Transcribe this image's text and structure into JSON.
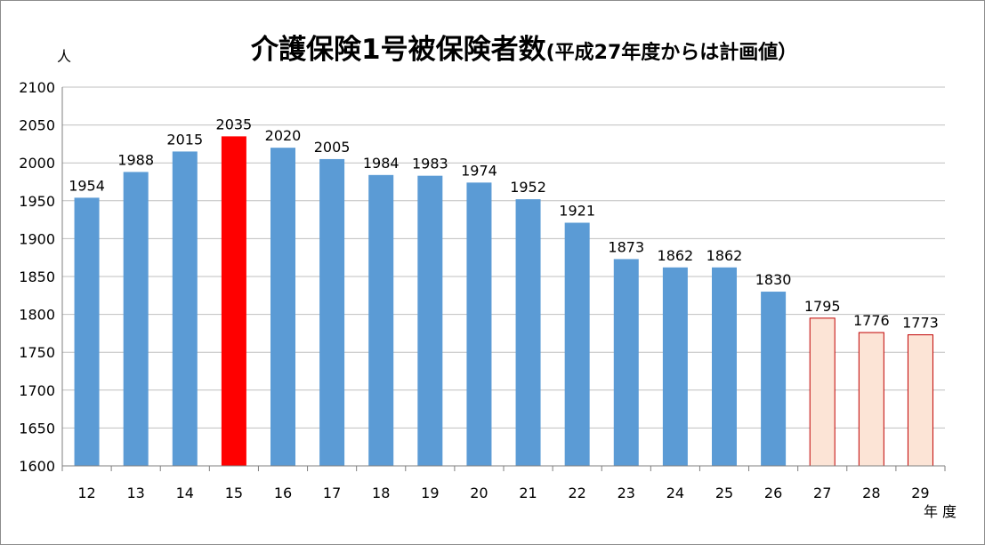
{
  "title": {
    "main": "介護保険1号被保険者数",
    "sub": "(平成27年度からは計画値）"
  },
  "y_unit": "人",
  "x_unit": "年度",
  "chart_data": {
    "type": "bar",
    "title": "介護保険1号被保険者数(平成27年度からは計画値）",
    "xlabel": "年度",
    "ylabel": "人",
    "categories": [
      "12",
      "13",
      "14",
      "15",
      "16",
      "17",
      "18",
      "19",
      "20",
      "21",
      "22",
      "23",
      "24",
      "25",
      "26",
      "27",
      "28",
      "29"
    ],
    "values": [
      1954,
      1988,
      2015,
      2035,
      2020,
      2005,
      1984,
      1983,
      1974,
      1952,
      1921,
      1873,
      1862,
      1862,
      1830,
      1795,
      1776,
      1773
    ],
    "ylim": [
      1600,
      2100
    ],
    "yticks": [
      1600,
      1650,
      1700,
      1750,
      1800,
      1850,
      1900,
      1950,
      2000,
      2050,
      2100
    ],
    "grid": "horizontal",
    "legend": "none",
    "styles": {
      "actual": {
        "fill": "#5b9bd5",
        "stroke": "none"
      },
      "peak": {
        "fill": "#ff0000",
        "stroke": "none"
      },
      "planned": {
        "fill": "#fce4d6",
        "stroke": "#c00000"
      }
    },
    "bar_styles": [
      "actual",
      "actual",
      "actual",
      "peak",
      "actual",
      "actual",
      "actual",
      "actual",
      "actual",
      "actual",
      "actual",
      "actual",
      "actual",
      "actual",
      "actual",
      "planned",
      "planned",
      "planned"
    ],
    "colors": {
      "grid": "#bfbfbf",
      "axis": "#7f7f7f",
      "text": "#000000"
    }
  }
}
